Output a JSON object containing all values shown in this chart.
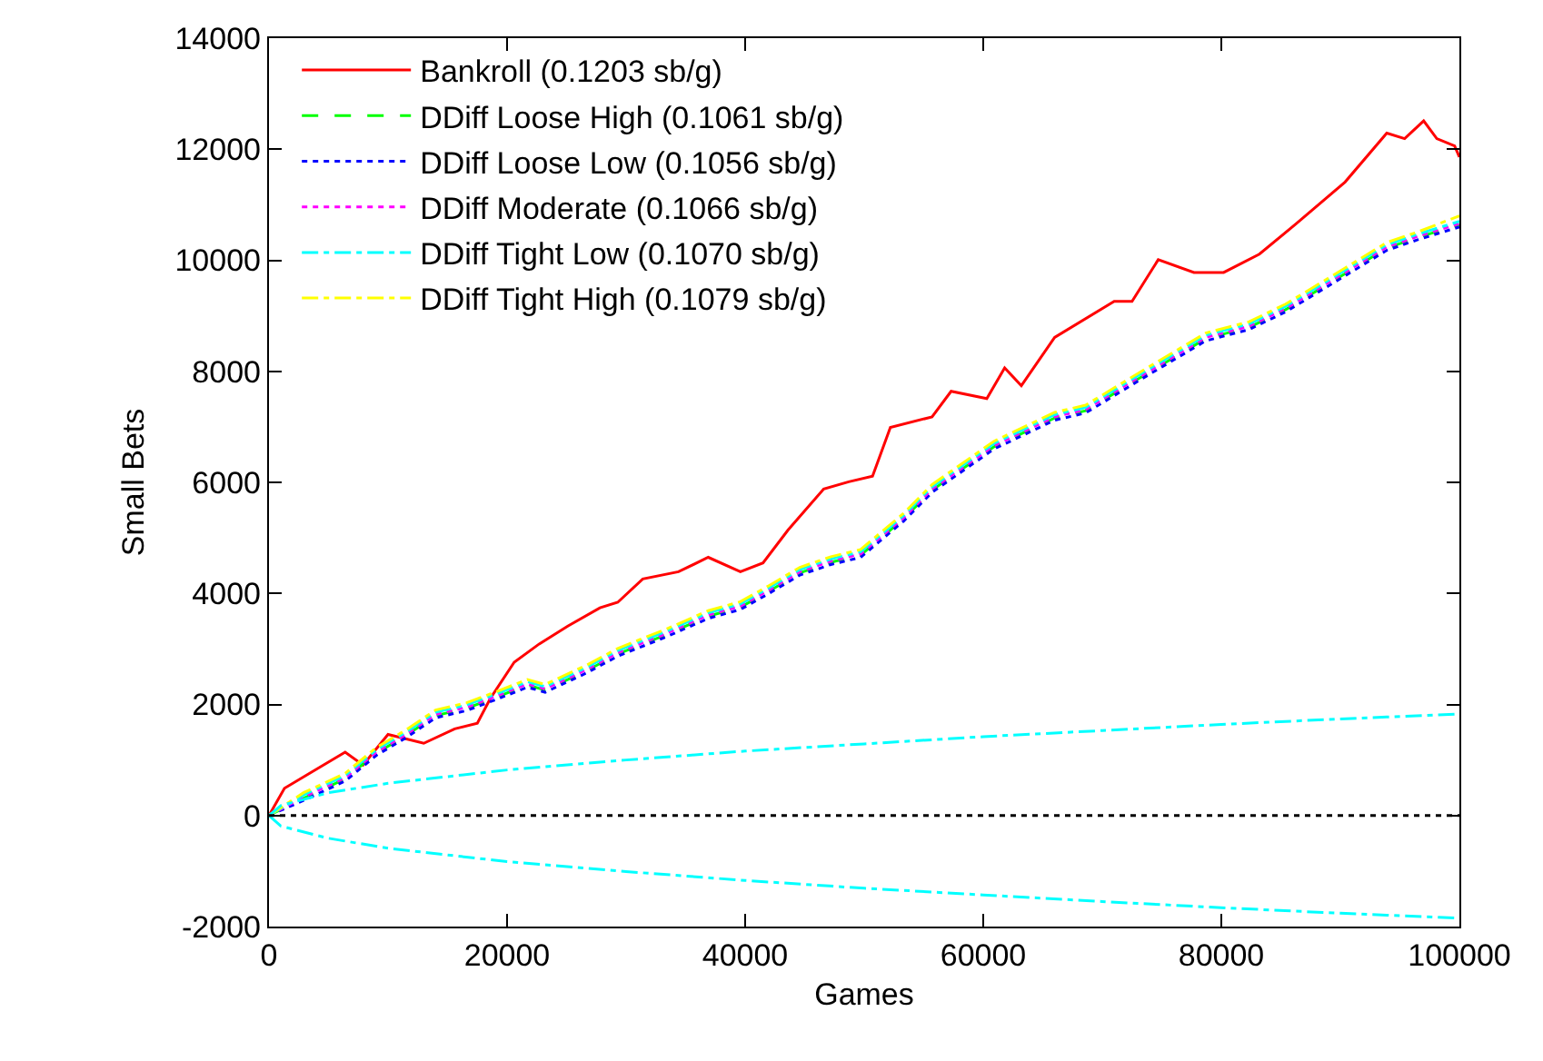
{
  "chart_data": {
    "type": "line",
    "xlabel": "Games",
    "ylabel": "Small Bets",
    "xlim": [
      0,
      100000
    ],
    "xticks": [
      0,
      20000,
      40000,
      60000,
      80000,
      100000
    ],
    "ylim": [
      -2000,
      14000
    ],
    "yticks": [
      -2000,
      0,
      2000,
      4000,
      6000,
      8000,
      10000,
      12000,
      14000
    ],
    "legend": "top left",
    "ref_lines": [
      {
        "axis": "y",
        "value": 0,
        "color": "#000000",
        "line_style": "dotted"
      }
    ],
    "series": [
      {
        "name": "Bankroll (0.1203 sb/g)",
        "color": "#ff0000",
        "line_style": "solid",
        "x": [
          0,
          1300,
          3800,
          6400,
          7900,
          10000,
          13000,
          15600,
          17500,
          18600,
          20600,
          22700,
          25100,
          27800,
          29300,
          31400,
          34400,
          36900,
          39600,
          41500,
          43600,
          46600,
          48700,
          50700,
          52200,
          55700,
          57300,
          60300,
          61800,
          63200,
          66000,
          71000,
          72500,
          74700,
          77700,
          80200,
          83200,
          86300,
          90400,
          93900,
          95400,
          97000,
          98100,
          99600,
          100000
        ],
        "values": [
          0,
          490,
          810,
          1140,
          910,
          1460,
          1300,
          1560,
          1660,
          2110,
          2760,
          3090,
          3410,
          3740,
          3840,
          4260,
          4390,
          4650,
          4390,
          4550,
          5140,
          5880,
          6010,
          6110,
          6990,
          7180,
          7640,
          7510,
          8060,
          7740,
          8610,
          9260,
          9260,
          10010,
          9780,
          9780,
          10110,
          10660,
          11410,
          12290,
          12190,
          12510,
          12190,
          12060,
          11860
        ]
      },
      {
        "name": "DDiff Loose High (0.1061 sb/g)",
        "color": "#00ff00",
        "line_style": "dashed",
        "x": [
          0,
          2900,
          6400,
          9000,
          11500,
          14000,
          16600,
          19100,
          21700,
          23200,
          26700,
          29300,
          33400,
          36900,
          39600,
          42000,
          44600,
          47200,
          49700,
          53300,
          55700,
          60900,
          66000,
          68600,
          73600,
          78700,
          82300,
          85400,
          90400,
          93900,
          96500,
          100000
        ],
        "values": [
          0,
          310,
          660,
          1120,
          1440,
          1800,
          1930,
          2130,
          2350,
          2260,
          2610,
          2910,
          3260,
          3590,
          3750,
          4040,
          4370,
          4560,
          4690,
          5340,
          5860,
          6640,
          7160,
          7290,
          7940,
          8590,
          8790,
          9110,
          9760,
          10220,
          10410,
          10640
        ]
      },
      {
        "name": "DDiff Loose Low (0.1056 sb/g)",
        "color": "#0000ff",
        "line_style": "dotted",
        "x": [
          0,
          2900,
          6400,
          9000,
          11500,
          14000,
          16600,
          19100,
          21700,
          23200,
          26700,
          29300,
          33400,
          36900,
          39600,
          42000,
          44600,
          47200,
          49700,
          53300,
          55700,
          60900,
          66000,
          68600,
          73600,
          78700,
          82300,
          85400,
          90400,
          93900,
          96500,
          100000
        ],
        "values": [
          0,
          270,
          620,
          1080,
          1400,
          1760,
          1890,
          2090,
          2310,
          2220,
          2570,
          2870,
          3220,
          3550,
          3710,
          4000,
          4330,
          4520,
          4650,
          5300,
          5820,
          6600,
          7120,
          7250,
          7900,
          8550,
          8750,
          9070,
          9720,
          10180,
          10370,
          10600
        ]
      },
      {
        "name": "DDiff Moderate (0.1066 sb/g)",
        "color": "#ff00ff",
        "line_style": "dotted",
        "x": [
          0,
          2900,
          6400,
          9000,
          11500,
          14000,
          16600,
          19100,
          21700,
          23200,
          26700,
          29300,
          33400,
          36900,
          39600,
          42000,
          44600,
          47200,
          49700,
          53300,
          55700,
          60900,
          66000,
          68600,
          73600,
          78700,
          82300,
          85400,
          90400,
          93900,
          96500,
          100000
        ],
        "values": [
          0,
          330,
          680,
          1140,
          1460,
          1820,
          1950,
          2150,
          2370,
          2280,
          2630,
          2930,
          3280,
          3610,
          3770,
          4060,
          4390,
          4580,
          4710,
          5360,
          5880,
          6660,
          7180,
          7310,
          7960,
          8610,
          8810,
          9130,
          9780,
          10240,
          10430,
          10660
        ]
      },
      {
        "name": "DDiff Tight Low (0.1070 sb/g)",
        "color": "#00ffff",
        "line_style": "dashdot",
        "x": [
          0,
          2900,
          6400,
          9000,
          11500,
          14000,
          16600,
          19100,
          21700,
          23200,
          26700,
          29300,
          33400,
          36900,
          39600,
          42000,
          44600,
          47200,
          49700,
          53300,
          55700,
          60900,
          66000,
          68600,
          73600,
          78700,
          82300,
          85400,
          90400,
          93900,
          96500,
          100000
        ],
        "values": [
          0,
          370,
          720,
          1180,
          1500,
          1860,
          1990,
          2190,
          2410,
          2320,
          2670,
          2970,
          3320,
          3650,
          3810,
          4100,
          4430,
          4620,
          4750,
          5400,
          5920,
          6700,
          7220,
          7350,
          8000,
          8650,
          8850,
          9170,
          9820,
          10280,
          10470,
          10700
        ]
      },
      {
        "name": "DDiff Tight High (0.1079 sb/g)",
        "color": "#ffff00",
        "line_style": "dashdot",
        "x": [
          0,
          2900,
          6400,
          9000,
          11500,
          14000,
          16600,
          19100,
          21700,
          23200,
          26700,
          29300,
          33400,
          36900,
          39600,
          42000,
          44600,
          47200,
          49700,
          53300,
          55700,
          60900,
          66000,
          68600,
          73600,
          78700,
          82300,
          85400,
          90400,
          93900,
          96500,
          100000
        ],
        "values": [
          0,
          410,
          760,
          1220,
          1540,
          1900,
          2030,
          2230,
          2450,
          2360,
          2710,
          3010,
          3360,
          3690,
          3850,
          4140,
          4470,
          4660,
          4790,
          5440,
          5960,
          6740,
          7260,
          7390,
          8040,
          8690,
          8890,
          9210,
          9860,
          10320,
          10510,
          10800
        ]
      },
      {
        "color": "#00ffff",
        "line_style": "dashdot",
        "x": [
          0,
          1000,
          5000,
          10000,
          20000,
          30000,
          40000,
          50000,
          60000,
          70000,
          80000,
          90000,
          100000
        ],
        "values": [
          0,
          180,
          410,
          580,
          820,
          1000,
          1160,
          1290,
          1420,
          1530,
          1640,
          1740,
          1830
        ]
      },
      {
        "color": "#00ffff",
        "line_style": "dashdot",
        "x": [
          0,
          1000,
          5000,
          10000,
          20000,
          30000,
          40000,
          50000,
          60000,
          70000,
          80000,
          90000,
          100000
        ],
        "values": [
          0,
          -190,
          -410,
          -590,
          -830,
          -1010,
          -1170,
          -1310,
          -1430,
          -1550,
          -1660,
          -1760,
          -1850
        ]
      }
    ]
  }
}
